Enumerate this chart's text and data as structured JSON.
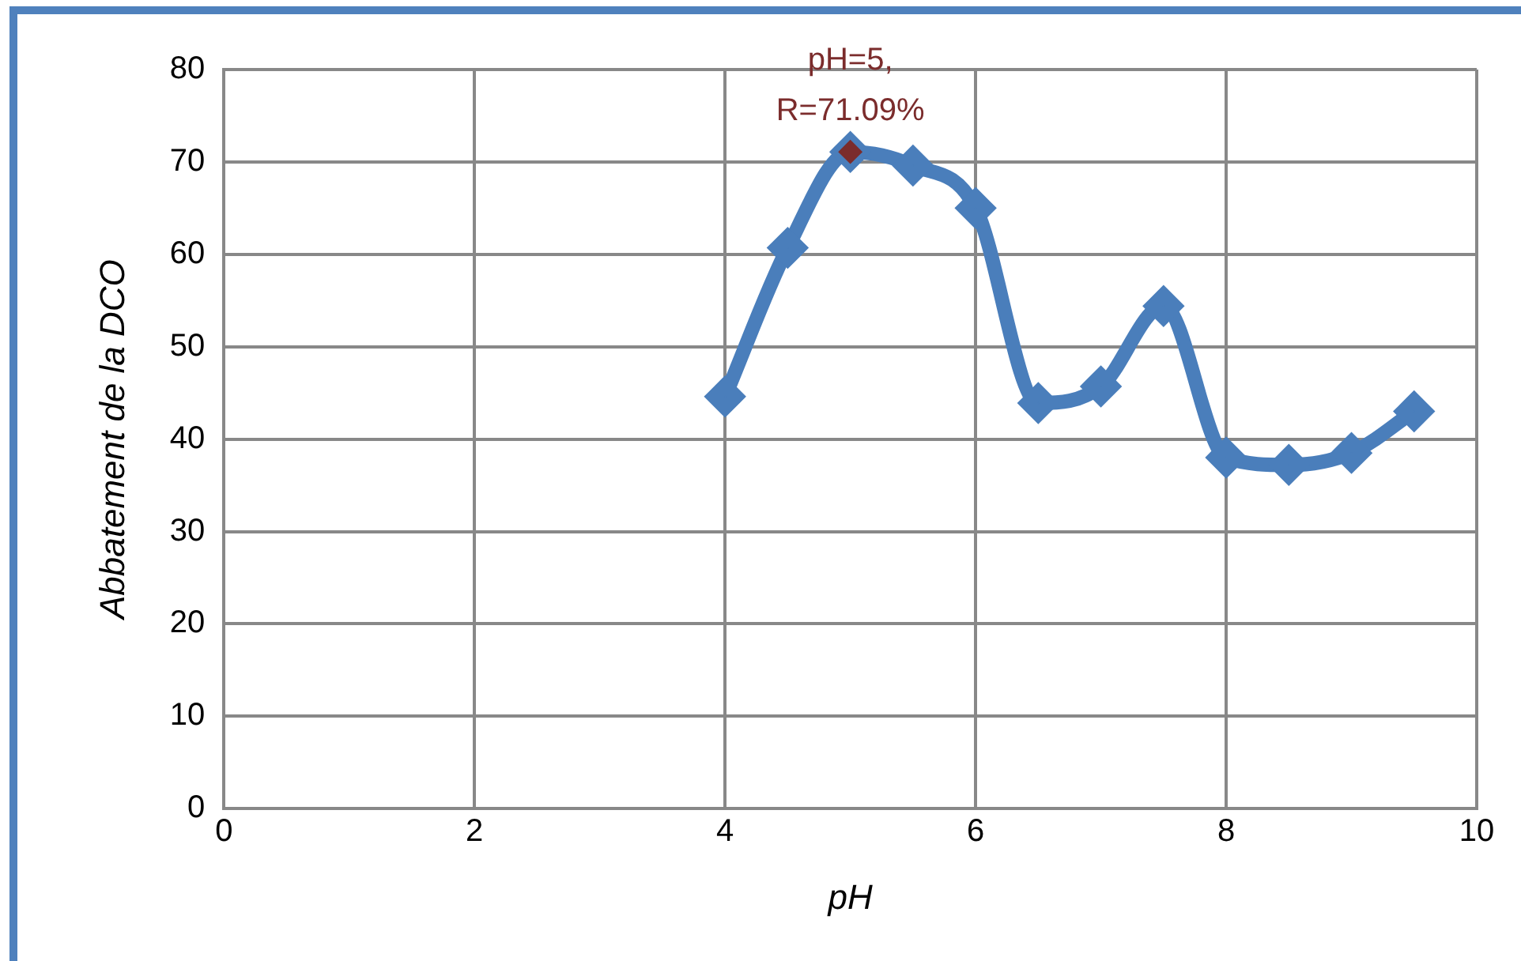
{
  "chart_data": {
    "type": "line",
    "xlabel": "pH",
    "ylabel": "Abbatement de la DCO",
    "xlim": [
      0,
      10
    ],
    "xticks": [
      0,
      2,
      4,
      6,
      8,
      10
    ],
    "ylim": [
      0,
      80
    ],
    "yticks": [
      0,
      10,
      20,
      30,
      40,
      50,
      60,
      70,
      80
    ],
    "grid": true,
    "legend": false,
    "marker": "diamond",
    "line_style": "solid",
    "series": [
      {
        "color": "#4a7ebb",
        "x": [
          4,
          4.5,
          5,
          5.5,
          6,
          6.5,
          7,
          7.5,
          8,
          8.5,
          9,
          9.5
        ],
        "values": [
          44.6,
          60.7,
          71.09,
          69.6,
          65,
          43.9,
          45.7,
          54.4,
          38,
          37.2,
          38.5,
          43
        ]
      },
      {
        "type": "scatter",
        "color": "#7b2c2c",
        "x": [
          5
        ],
        "values": [
          71.09
        ]
      }
    ],
    "annotations": [
      {
        "text": "pH=5,\nR=71.09%",
        "x": 5,
        "y": 71.09
      }
    ]
  }
}
